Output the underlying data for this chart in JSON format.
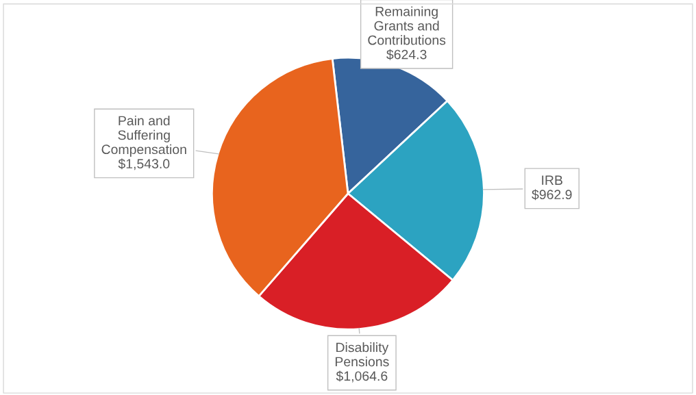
{
  "chart_data": {
    "type": "pie",
    "categories": [
      "Remaining\nGrants and\nContributions",
      "IRB",
      "Disability\nPensions",
      "Pain and\nSuffering\nCompensation"
    ],
    "values": [
      624.3,
      962.9,
      1064.6,
      1543.0
    ],
    "colors": [
      "#36649c",
      "#2ca3c1",
      "#d91f26",
      "#e8641e"
    ],
    "value_labels": [
      "$624.3",
      "$962.9",
      "$1,064.6",
      "$1,543.0"
    ]
  }
}
